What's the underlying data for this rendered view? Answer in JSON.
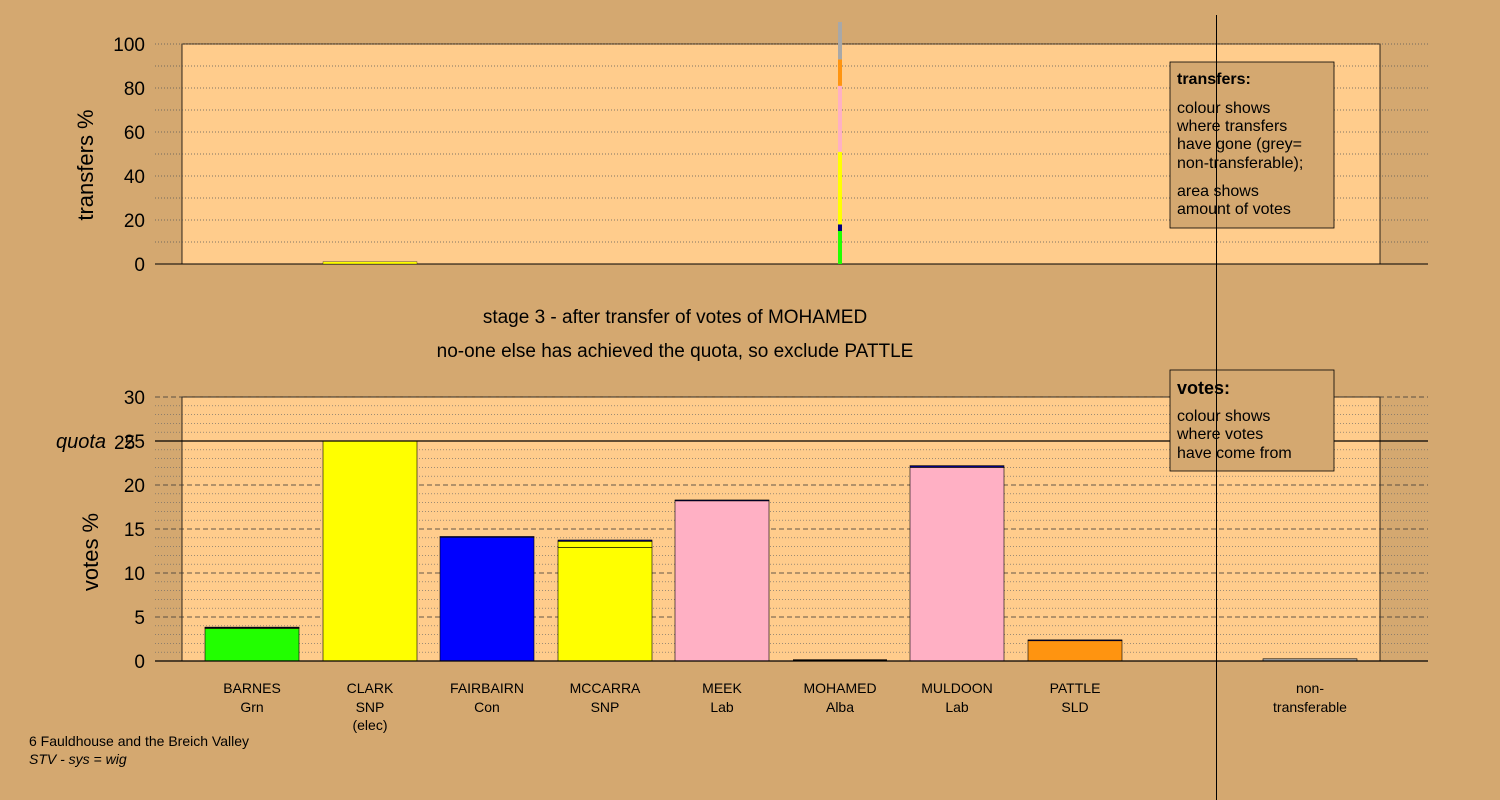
{
  "colors": {
    "background": "#d4a870",
    "plot_fill": "#ffcc8c",
    "party": {
      "Grn": "#22ff00",
      "SNP": "#ffff00",
      "Con": "#0000ff",
      "Lab": "#ffb0c4",
      "Alba": "#000080",
      "SLD": "#ff9410",
      "non-transferable": "#a8a8a8"
    }
  },
  "footer": {
    "ward": "6 Fauldhouse and the Breich Valley",
    "system": "STV - sys = wig"
  },
  "stage": {
    "line1": "stage 3 - after transfer of votes of MOHAMED",
    "line2": "no-one else has achieved the quota, so exclude PATTLE"
  },
  "chart_data": [
    {
      "type": "bar",
      "name": "transfers",
      "ylabel": "transfers %",
      "ylim": [
        0,
        100
      ],
      "yticks": [
        0,
        20,
        40,
        60,
        80,
        100
      ],
      "grid": "dotted every 10",
      "legend": {
        "position": "top-right",
        "title": "transfers:",
        "lines": [
          "colour shows",
          "where transfers",
          "have gone (grey=",
          "non-transferable);"
        ],
        "lines2": [
          "area shows",
          "amount of votes"
        ]
      },
      "transferred_from": "MOHAMED",
      "transfer_share": 0.4,
      "categories": [
        "BARNES",
        "CLARK",
        "FAIRBAIRN",
        "MCCARRA",
        "MEEK",
        "MOHAMED",
        "MULDOON",
        "PATTLE",
        "non-transferable"
      ],
      "series": [
        {
          "party": "Grn",
          "values": [
            15,
            0,
            0,
            0,
            0,
            0,
            0,
            0,
            0
          ]
        },
        {
          "party": "Alba",
          "values": [
            0,
            0,
            3,
            0,
            0,
            0,
            0,
            0,
            0
          ]
        },
        {
          "party": "SNP",
          "values": [
            0,
            1,
            0,
            32,
            0,
            0,
            0,
            0,
            0
          ]
        },
        {
          "party": "Lab",
          "values": [
            0,
            0,
            0,
            0,
            10,
            0,
            20,
            0,
            0
          ]
        },
        {
          "party": "SLD",
          "values": [
            0,
            0,
            0,
            0,
            0,
            0,
            0,
            12,
            0
          ]
        },
        {
          "party": "non-transferable",
          "values": [
            0,
            0,
            0,
            0,
            0,
            0,
            0,
            0,
            17
          ]
        }
      ]
    },
    {
      "type": "bar",
      "name": "votes",
      "ylabel": "votes %",
      "ylim": [
        0,
        30
      ],
      "yticks": [
        0,
        5,
        10,
        15,
        20,
        25,
        30
      ],
      "quota": 25,
      "quota_label": "quota",
      "legend": {
        "position": "top-right",
        "title": "votes:",
        "lines": [
          "colour shows",
          "where votes",
          "have come from"
        ]
      },
      "candidates": [
        {
          "name": "BARNES",
          "party": "Grn",
          "note": "",
          "segments": [
            {
              "from": "Grn",
              "value": 3.7
            },
            {
              "from": "SNP",
              "value": 0.1
            },
            {
              "from": "Alba",
              "value": 0.05
            }
          ]
        },
        {
          "name": "CLARK",
          "party": "SNP",
          "note": "(elec)",
          "segments": [
            {
              "from": "SNP",
              "value": 25.0
            }
          ]
        },
        {
          "name": "FAIRBAIRN",
          "party": "Con",
          "note": "",
          "segments": [
            {
              "from": "Con",
              "value": 14.1
            },
            {
              "from": "Alba",
              "value": 0.05
            }
          ]
        },
        {
          "name": "MCCARRA",
          "party": "SNP",
          "note": "",
          "segments": [
            {
              "from": "SNP",
              "value": 12.9
            },
            {
              "from": "SNP",
              "value": 0.7
            },
            {
              "from": "Alba",
              "value": 0.15
            }
          ]
        },
        {
          "name": "MEEK",
          "party": "Lab",
          "note": "",
          "segments": [
            {
              "from": "Lab",
              "value": 18.2
            },
            {
              "from": "Alba",
              "value": 0.1
            }
          ]
        },
        {
          "name": "MOHAMED",
          "party": "Alba",
          "note": "",
          "segments": [
            {
              "from": "Alba",
              "value": 0.0
            }
          ]
        },
        {
          "name": "MULDOON",
          "party": "Lab",
          "note": "",
          "segments": [
            {
              "from": "Lab",
              "value": 22.0
            },
            {
              "from": "Alba",
              "value": 0.2
            }
          ]
        },
        {
          "name": "PATTLE",
          "party": "SLD",
          "note": "",
          "segments": [
            {
              "from": "SLD",
              "value": 2.3
            },
            {
              "from": "Alba",
              "value": 0.1
            }
          ]
        },
        {
          "name": "non-",
          "party": "transferable",
          "note": "",
          "segments": [
            {
              "from": "non-transferable",
              "value": 0.25
            }
          ]
        }
      ]
    }
  ]
}
